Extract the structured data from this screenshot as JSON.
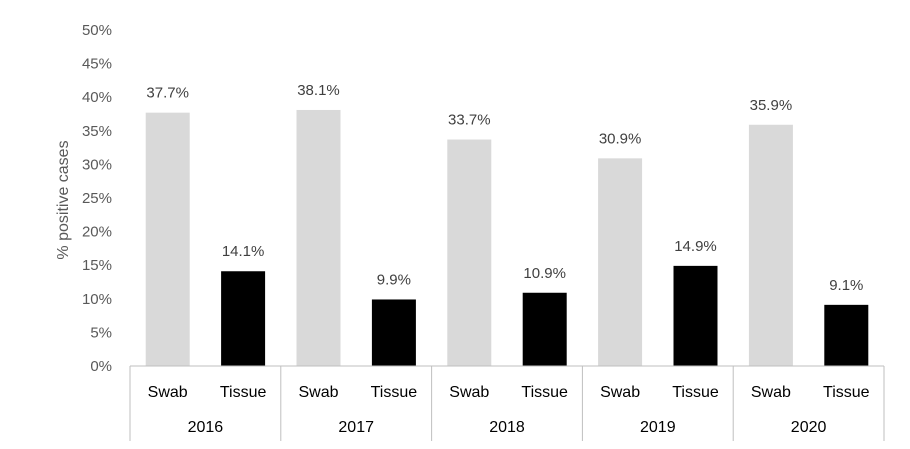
{
  "chart_data": {
    "type": "bar",
    "title": "",
    "ylabel": "% positive cases",
    "ylim": [
      0,
      50
    ],
    "y_ticks": [
      "0%",
      "5%",
      "10%",
      "15%",
      "20%",
      "25%",
      "30%",
      "35%",
      "40%",
      "45%",
      "50%"
    ],
    "y_tick_values": [
      0,
      5,
      10,
      15,
      20,
      25,
      30,
      35,
      40,
      45,
      50
    ],
    "grid": false,
    "groups": [
      {
        "year": "2016",
        "bars": [
          {
            "label": "Swab",
            "value": 37.7,
            "value_label": "37.7%",
            "color": "#d9d9d9"
          },
          {
            "label": "Tissue",
            "value": 14.1,
            "value_label": "14.1%",
            "color": "#000000"
          }
        ]
      },
      {
        "year": "2017",
        "bars": [
          {
            "label": "Swab",
            "value": 38.1,
            "value_label": "38.1%",
            "color": "#d9d9d9"
          },
          {
            "label": "Tissue",
            "value": 9.9,
            "value_label": "9.9%",
            "color": "#000000"
          }
        ]
      },
      {
        "year": "2018",
        "bars": [
          {
            "label": "Swab",
            "value": 33.7,
            "value_label": "33.7%",
            "color": "#d9d9d9"
          },
          {
            "label": "Tissue",
            "value": 10.9,
            "value_label": "10.9%",
            "color": "#000000"
          }
        ]
      },
      {
        "year": "2019",
        "bars": [
          {
            "label": "Swab",
            "value": 30.9,
            "value_label": "30.9%",
            "color": "#d9d9d9"
          },
          {
            "label": "Tissue",
            "value": 14.9,
            "value_label": "14.9%",
            "color": "#000000"
          }
        ]
      },
      {
        "year": "2020",
        "bars": [
          {
            "label": "Swab",
            "value": 35.9,
            "value_label": "35.9%",
            "color": "#d9d9d9"
          },
          {
            "label": "Tissue",
            "value": 9.1,
            "value_label": "9.1%",
            "color": "#000000"
          }
        ]
      }
    ]
  }
}
